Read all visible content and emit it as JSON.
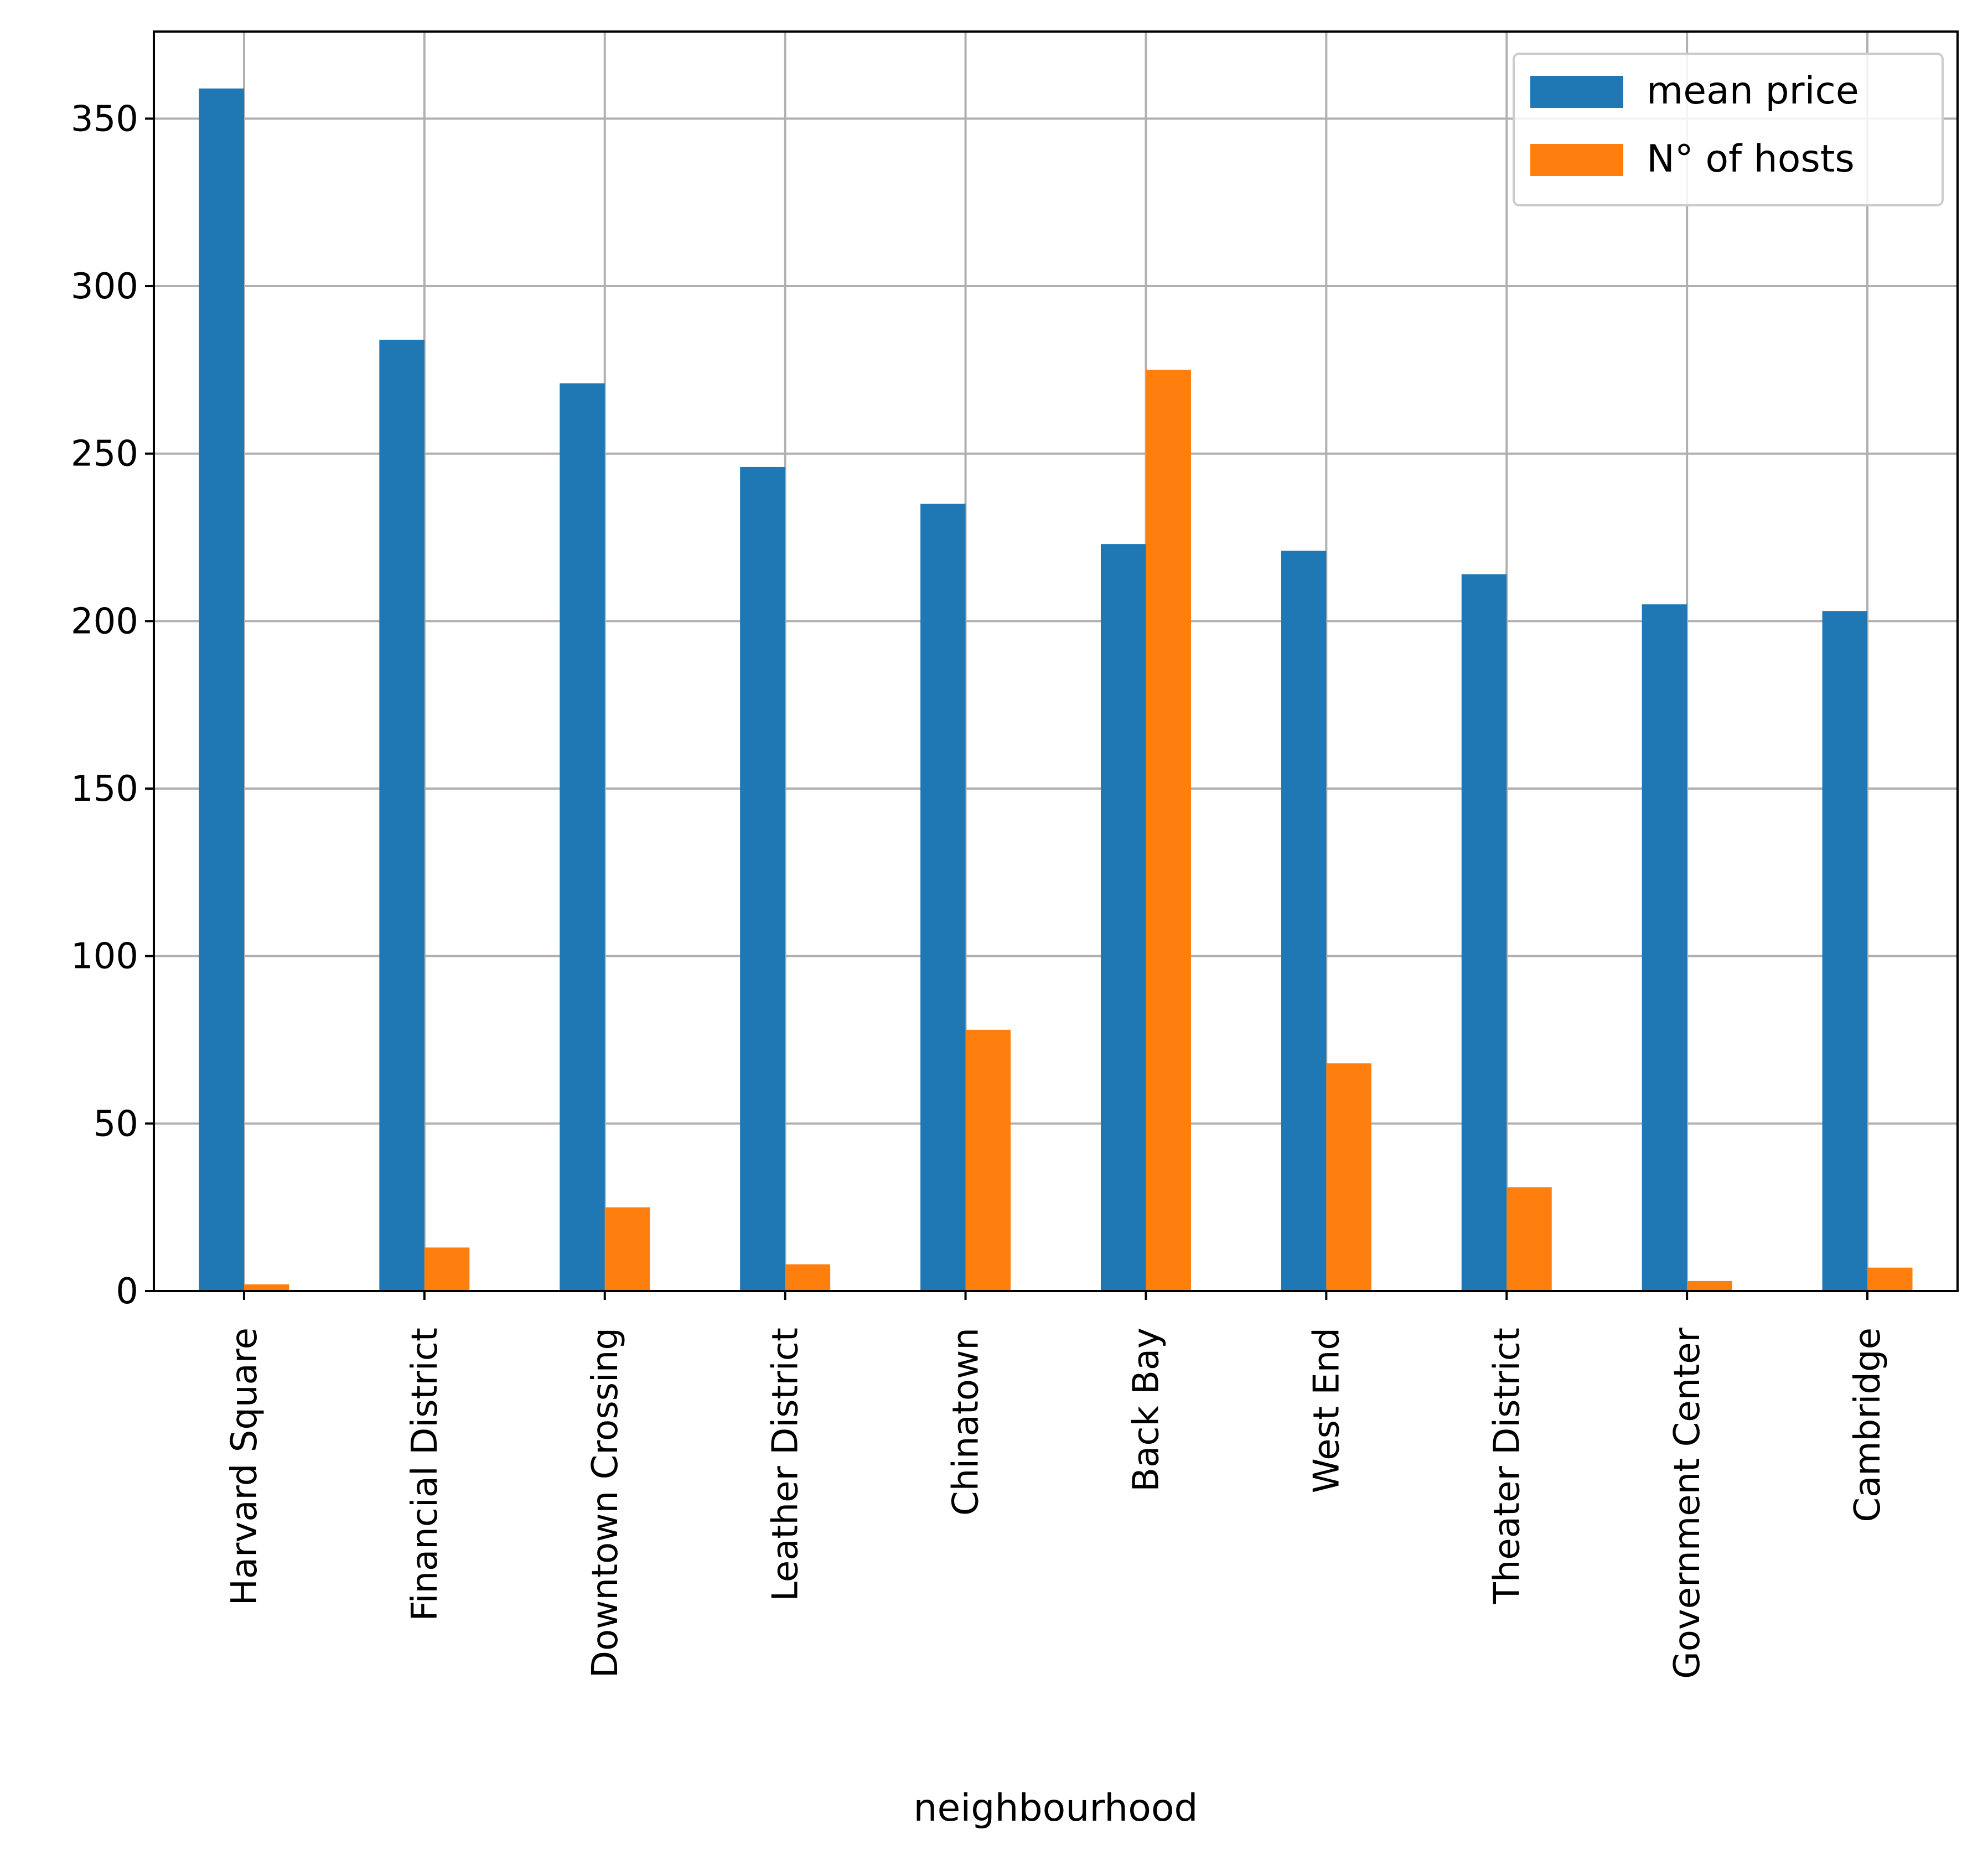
{
  "chart_data": {
    "type": "bar",
    "title": "",
    "xlabel": "neighbourhood",
    "ylabel": "",
    "categories": [
      "Harvard Square",
      "Financial District",
      "Downtown Crossing",
      "Leather District",
      "Chinatown",
      "Back Bay",
      "West End",
      "Theater District",
      "Government Center",
      "Cambridge"
    ],
    "series": [
      {
        "name": "mean price",
        "color": "#1f77b4",
        "values": [
          359,
          284,
          271,
          246,
          235,
          223,
          221,
          214,
          205,
          203
        ]
      },
      {
        "name": "N° of hosts",
        "color": "#ff7f0e",
        "values": [
          2,
          13,
          25,
          8,
          78,
          275,
          68,
          31,
          3,
          7
        ]
      }
    ],
    "ylim": [
      0,
      376
    ],
    "yticks": [
      0,
      50,
      100,
      150,
      200,
      250,
      300,
      350
    ],
    "grid": true,
    "legend_position": "top-right"
  }
}
